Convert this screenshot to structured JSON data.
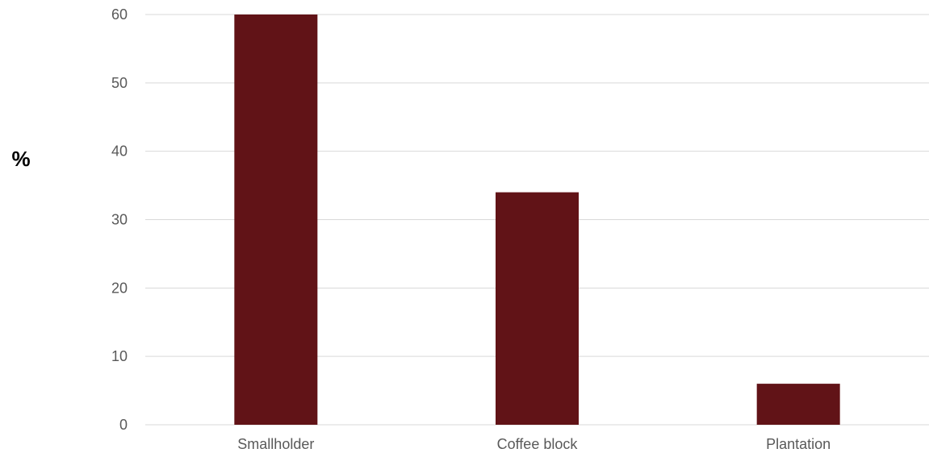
{
  "chart_data": {
    "type": "bar",
    "title": "",
    "xlabel": "",
    "ylabel": "%",
    "categories": [
      "Smallholder",
      "Coffee block",
      "Plantation"
    ],
    "series": [
      {
        "values": [
          60,
          34,
          6
        ]
      }
    ],
    "ylim": [
      0,
      60
    ],
    "yticks": [
      0,
      10,
      20,
      30,
      40,
      50,
      60
    ],
    "grid": true,
    "legend": "none",
    "colors": {
      "bar": "#611317",
      "grid": "#d9d9d9",
      "tick_text": "#595959"
    }
  }
}
